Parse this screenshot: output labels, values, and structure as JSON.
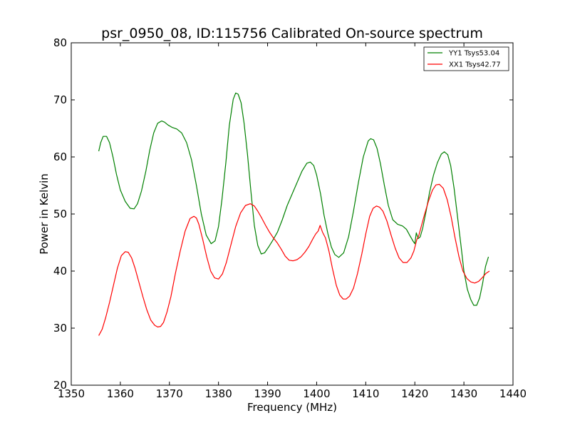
{
  "chart_data": {
    "type": "line",
    "title": "psr_0950_08, ID:115756 Calibrated On-source spectrum",
    "xlabel": "Frequency (MHz)",
    "ylabel": "Power in Kelvin",
    "xlim": [
      1350,
      1440
    ],
    "ylim": [
      20,
      80
    ],
    "xticks": [
      1350,
      1360,
      1370,
      1380,
      1390,
      1400,
      1410,
      1420,
      1430,
      1440
    ],
    "yticks": [
      20,
      30,
      40,
      50,
      60,
      70,
      80
    ],
    "grid": false,
    "legend_position": "top-right",
    "series": [
      {
        "name": "YY1 Tsys53.04",
        "color": "#008000",
        "x": [
          1355.6,
          1356.0,
          1356.5,
          1357.2,
          1357.8,
          1358.5,
          1359.2,
          1360.0,
          1361.0,
          1362.0,
          1362.8,
          1363.5,
          1364.3,
          1365.2,
          1366.0,
          1366.8,
          1367.6,
          1368.4,
          1369.0,
          1369.7,
          1370.5,
          1371.5,
          1372.5,
          1373.5,
          1374.5,
          1375.5,
          1376.5,
          1377.5,
          1378.5,
          1379.3,
          1380.0,
          1380.7,
          1381.5,
          1382.2,
          1383.0,
          1383.5,
          1384.0,
          1384.6,
          1385.2,
          1385.9,
          1386.6,
          1387.3,
          1388.0,
          1388.7,
          1389.4,
          1390.2,
          1391.0,
          1392.0,
          1393.0,
          1394.0,
          1395.0,
          1396.0,
          1397.0,
          1398.0,
          1398.7,
          1399.4,
          1400.0,
          1400.8,
          1401.5,
          1402.3,
          1403.0,
          1403.7,
          1404.5,
          1405.5,
          1406.5,
          1407.5,
          1408.5,
          1409.5,
          1410.5,
          1411.0,
          1411.6,
          1412.3,
          1413.0,
          1413.8,
          1414.6,
          1415.5,
          1416.5,
          1417.5,
          1418.3,
          1419.0,
          1419.6,
          1420.0,
          1420.3,
          1420.7,
          1421.1,
          1421.6,
          1422.3,
          1423.0,
          1423.8,
          1424.6,
          1425.4,
          1426.0,
          1426.7,
          1427.3,
          1428.0,
          1428.7,
          1429.4,
          1430.0,
          1430.7,
          1431.4,
          1432.0,
          1432.6,
          1433.2,
          1433.8,
          1434.4,
          1435.0
        ],
        "y": [
          61.0,
          62.5,
          63.6,
          63.6,
          62.5,
          60.0,
          57.0,
          54.2,
          52.2,
          51.0,
          50.9,
          51.8,
          54.0,
          57.5,
          61.2,
          64.2,
          65.9,
          66.3,
          66.1,
          65.6,
          65.2,
          64.9,
          64.2,
          62.5,
          59.5,
          55.0,
          50.0,
          46.3,
          44.8,
          45.3,
          47.8,
          52.5,
          59.0,
          65.5,
          70.1,
          71.2,
          71.0,
          69.5,
          66.0,
          60.5,
          54.0,
          48.0,
          44.5,
          43.0,
          43.2,
          44.2,
          45.3,
          46.8,
          49.0,
          51.5,
          53.5,
          55.5,
          57.5,
          58.9,
          59.1,
          58.5,
          56.8,
          53.5,
          49.8,
          46.5,
          44.2,
          42.9,
          42.4,
          43.2,
          46.0,
          50.5,
          55.5,
          60.0,
          62.8,
          63.2,
          63.0,
          61.5,
          58.8,
          55.0,
          51.5,
          49.0,
          48.2,
          47.9,
          47.3,
          46.2,
          45.3,
          44.8,
          46.7,
          45.7,
          46.0,
          47.5,
          50.5,
          53.8,
          56.8,
          59.0,
          60.5,
          60.9,
          60.4,
          58.5,
          54.5,
          49.5,
          44.5,
          40.0,
          36.8,
          35.0,
          34.0,
          34.0,
          35.3,
          37.8,
          40.8,
          42.5
        ]
      },
      {
        "name": "XX1 Tsys42.77",
        "color": "#ff0000",
        "x": [
          1355.6,
          1356.3,
          1357.0,
          1357.8,
          1358.6,
          1359.4,
          1360.2,
          1361.0,
          1361.6,
          1362.3,
          1363.0,
          1363.8,
          1364.6,
          1365.4,
          1366.2,
          1367.0,
          1367.6,
          1368.2,
          1368.8,
          1369.5,
          1370.3,
          1371.2,
          1372.2,
          1373.2,
          1374.2,
          1375.0,
          1375.5,
          1376.0,
          1376.8,
          1377.6,
          1378.4,
          1379.2,
          1380.0,
          1380.8,
          1381.6,
          1382.5,
          1383.5,
          1384.5,
          1385.5,
          1386.5,
          1387.3,
          1388.0,
          1388.8,
          1389.6,
          1390.4,
          1391.2,
          1392.0,
          1392.8,
          1393.6,
          1394.4,
          1395.2,
          1396.0,
          1396.8,
          1397.6,
          1398.4,
          1399.2,
          1399.8,
          1400.3,
          1400.7,
          1401.2,
          1401.8,
          1402.5,
          1403.2,
          1404.0,
          1404.7,
          1405.4,
          1406.0,
          1406.7,
          1407.5,
          1408.3,
          1409.2,
          1410.0,
          1410.8,
          1411.5,
          1412.2,
          1412.8,
          1413.5,
          1414.3,
          1415.2,
          1416.0,
          1416.8,
          1417.6,
          1418.4,
          1419.2,
          1419.8,
          1420.1,
          1420.4,
          1420.8,
          1421.3,
          1422.0,
          1422.8,
          1423.6,
          1424.3,
          1425.0,
          1425.8,
          1426.6,
          1427.4,
          1428.2,
          1429.0,
          1429.8,
          1430.6,
          1431.4,
          1432.2,
          1433.0,
          1433.8,
          1434.5,
          1435.2
        ],
        "y": [
          28.7,
          29.8,
          31.8,
          34.5,
          37.5,
          40.5,
          42.7,
          43.4,
          43.3,
          42.3,
          40.5,
          38.0,
          35.5,
          33.2,
          31.4,
          30.5,
          30.2,
          30.3,
          31.0,
          32.8,
          35.5,
          39.5,
          43.5,
          47.0,
          49.2,
          49.6,
          49.3,
          48.2,
          45.5,
          42.5,
          40.0,
          38.8,
          38.6,
          39.5,
          41.5,
          44.5,
          47.8,
          50.2,
          51.5,
          51.8,
          51.4,
          50.5,
          49.3,
          48.0,
          46.8,
          45.8,
          44.9,
          43.8,
          42.6,
          41.9,
          41.8,
          42.0,
          42.5,
          43.3,
          44.3,
          45.6,
          46.5,
          47.0,
          48.0,
          46.8,
          45.8,
          43.5,
          40.5,
          37.5,
          35.8,
          35.1,
          35.1,
          35.6,
          37.0,
          39.5,
          43.0,
          46.5,
          49.6,
          51.0,
          51.4,
          51.2,
          50.5,
          48.8,
          46.2,
          44.0,
          42.3,
          41.5,
          41.5,
          42.3,
          43.5,
          44.5,
          45.5,
          46.2,
          47.8,
          50.0,
          52.3,
          54.2,
          55.1,
          55.2,
          54.5,
          52.5,
          49.5,
          45.8,
          42.5,
          40.0,
          38.7,
          38.1,
          37.9,
          38.2,
          38.9,
          39.6,
          40.0
        ]
      }
    ]
  }
}
